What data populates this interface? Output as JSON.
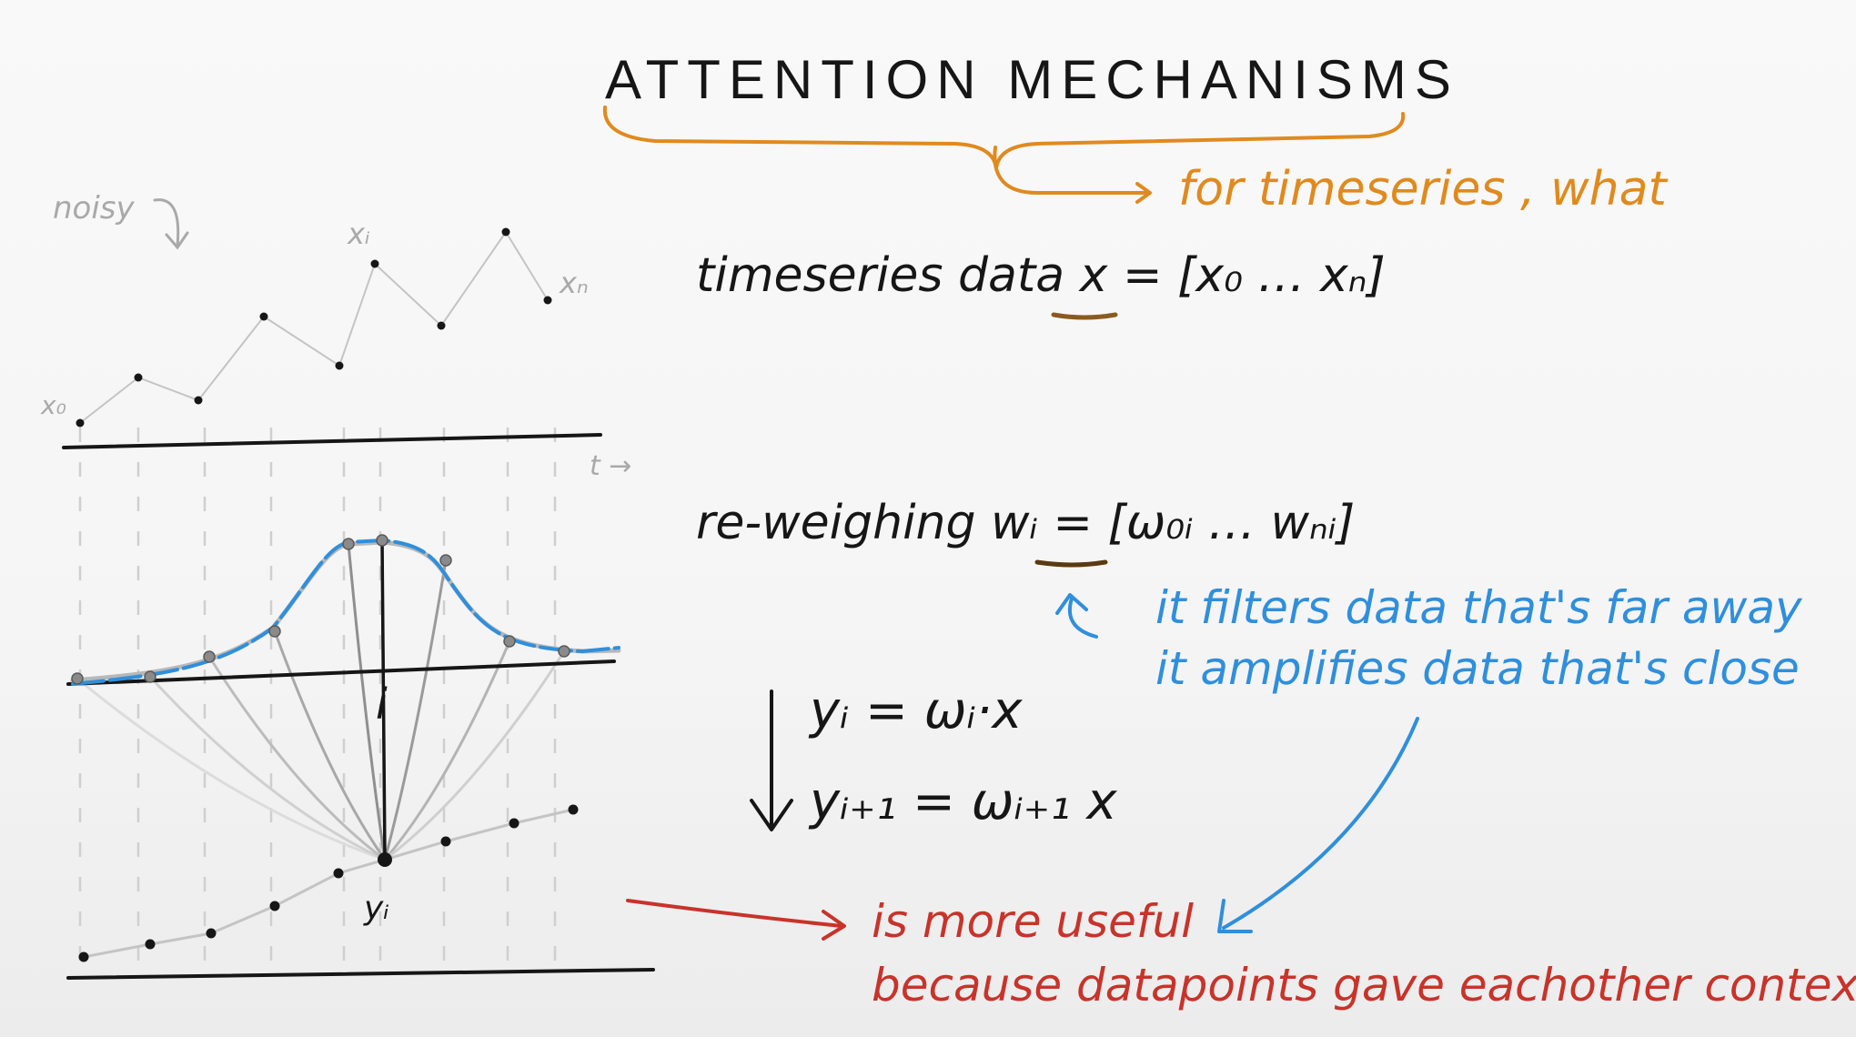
{
  "title": "ATTENTION MECHANISMS",
  "orange_note": "for timeseries , what",
  "noisy_label": "noisy",
  "x0_label": "x₀",
  "xi_label": "xᵢ",
  "xn_label": "xₙ",
  "t_label": "t →",
  "timeseries_line": "timeseries data  x = [x₀ … xₙ]",
  "reweigh_line": "re-weighing  wᵢ = [ω₀ᵢ … wₙᵢ]",
  "blue_line_1": "it filters data that's far away",
  "blue_line_2": "it amplifies data that's close",
  "eq_1": "yᵢ = ωᵢ·x",
  "eq_2": "yᵢ₊₁ = ωᵢ₊₁ x",
  "i_label": "i",
  "yi_label": "yᵢ",
  "red_line_1": "is more useful",
  "red_line_2": "because datapoints gave eachother context",
  "colors": {
    "black": "#161616",
    "gray": "#a9a9a9",
    "orange": "#e08a1e",
    "blue": "#2f8fdc",
    "red": "#c8332a"
  }
}
